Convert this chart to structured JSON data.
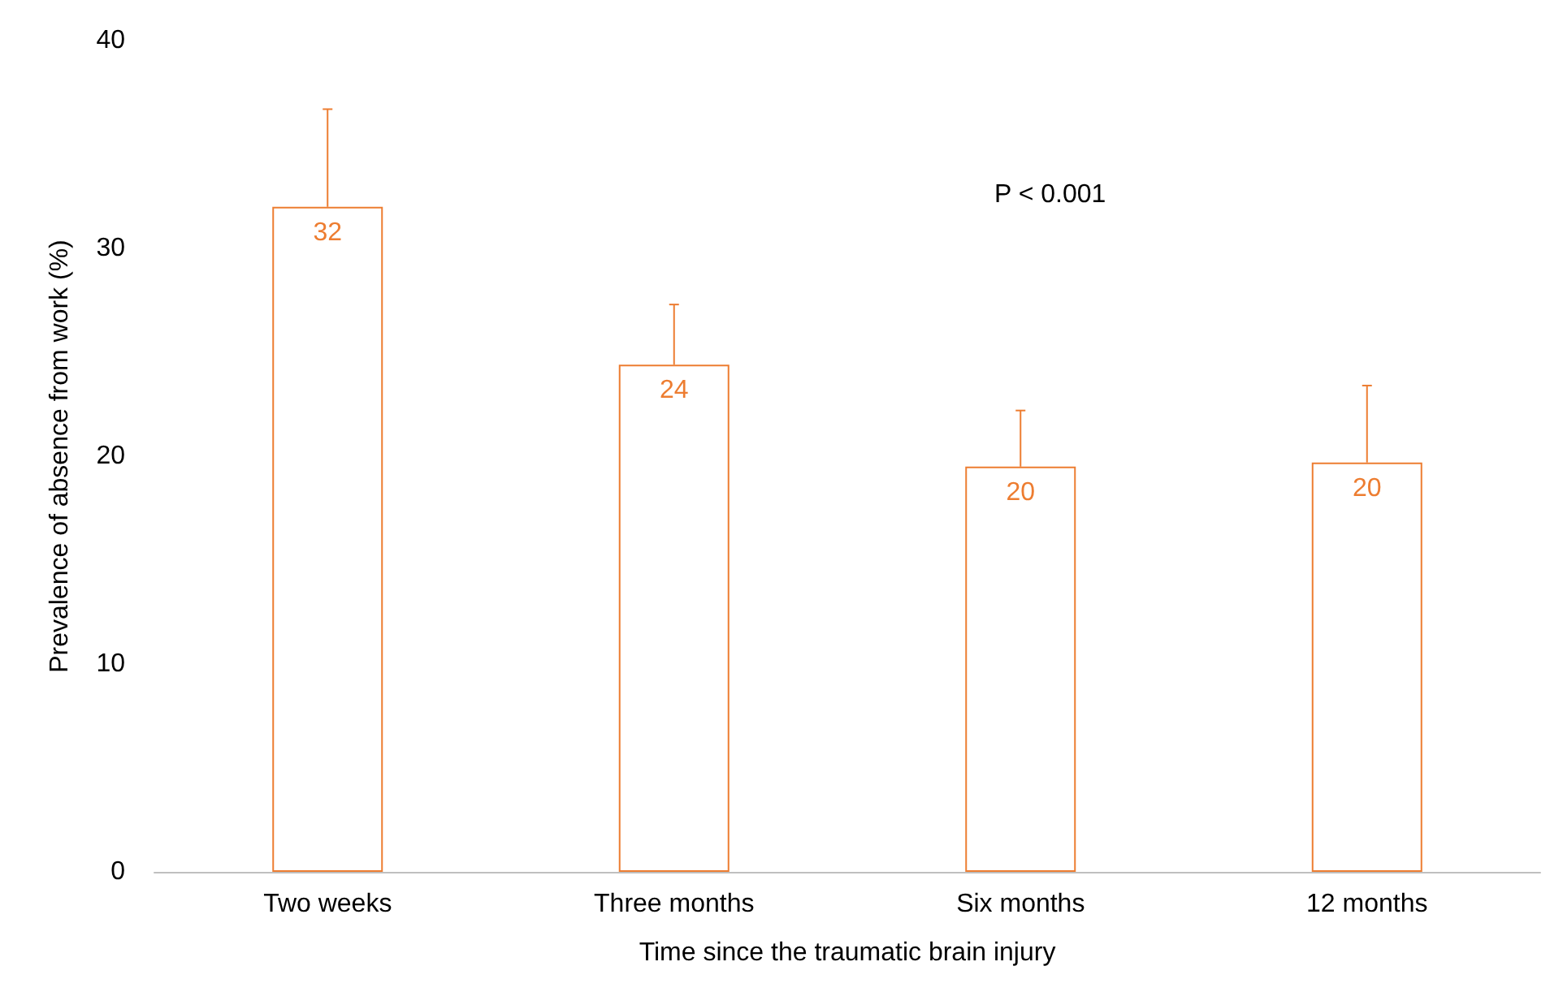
{
  "chart_data": {
    "type": "bar",
    "xlabel": "Time since the traumatic brain injury",
    "ylabel": "Prevalence of absence from work (%)",
    "categories": [
      "Two weeks",
      "Three months",
      "Six months",
      "12 months"
    ],
    "values": [
      32,
      24.4,
      19.5,
      19.7
    ],
    "value_labels": [
      "32",
      "24",
      "20",
      "20"
    ],
    "errors": [
      [
        32,
        36.7
      ],
      [
        24.4,
        27.3
      ],
      [
        19.5,
        22.2
      ],
      [
        19.7,
        23.4
      ]
    ],
    "color": "#ed7d31",
    "ylim": [
      0,
      40
    ],
    "yticks": [
      0,
      10,
      20,
      30,
      40
    ],
    "grid": false,
    "annotations": [
      "P < 0.001"
    ]
  }
}
